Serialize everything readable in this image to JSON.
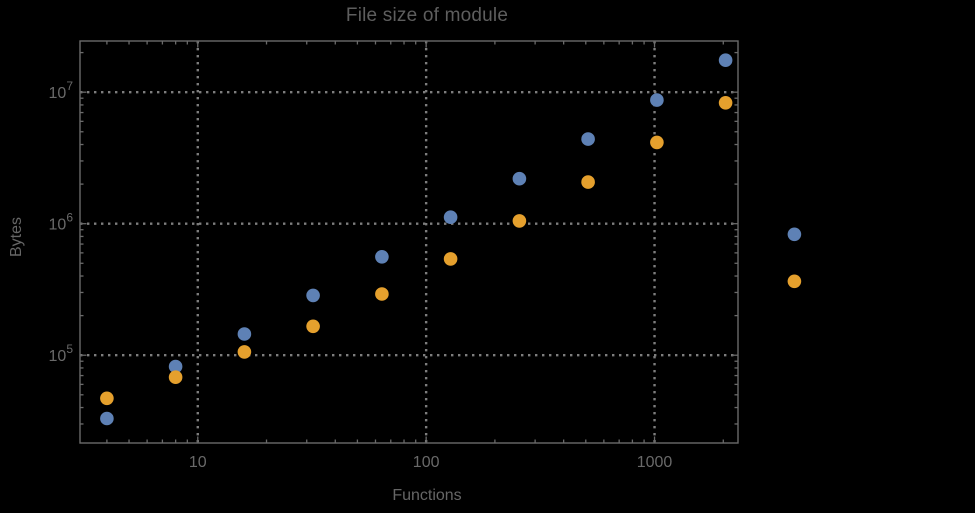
{
  "colors": {
    "background": "#000000",
    "frame": "#6a6a6a",
    "grid": "#7d7d7d",
    "text": "#666666",
    "title_text": "#5e5e5e",
    "series_blue": "#5E81B5",
    "series_orange": "#E5A02D"
  },
  "chart_data": {
    "type": "scatter",
    "title": "File size of module",
    "xlabel": "Functions",
    "ylabel": "Bytes",
    "x_scale": "log",
    "y_scale": "log",
    "grid": "dotted",
    "legend": "none",
    "xlim": [
      3.05,
      2320
    ],
    "ylim": [
      21500,
      24500000
    ],
    "x": [
      4,
      8,
      16,
      32,
      64,
      128,
      256,
      512,
      1024,
      2048,
      4096
    ],
    "series": [
      {
        "name": "blue",
        "color": "#5E81B5",
        "values": [
          33000,
          82000,
          145000,
          285000,
          560000,
          1120000,
          2200000,
          4400000,
          8700000,
          17500000,
          830000
        ]
      },
      {
        "name": "orange",
        "color": "#E5A02D",
        "values": [
          47000,
          68000,
          106000,
          166000,
          292000,
          540000,
          1050000,
          2070000,
          4150000,
          8300000,
          365000
        ]
      }
    ],
    "x_ticks": [
      {
        "value": 10,
        "label": "10"
      },
      {
        "value": 100,
        "label": "100"
      },
      {
        "value": 1000,
        "label": "1000"
      }
    ],
    "y_ticks": [
      {
        "value": 100000,
        "base": "10",
        "exp": "5"
      },
      {
        "value": 1000000,
        "base": "10",
        "exp": "6"
      },
      {
        "value": 10000000,
        "base": "10",
        "exp": "7"
      }
    ]
  }
}
